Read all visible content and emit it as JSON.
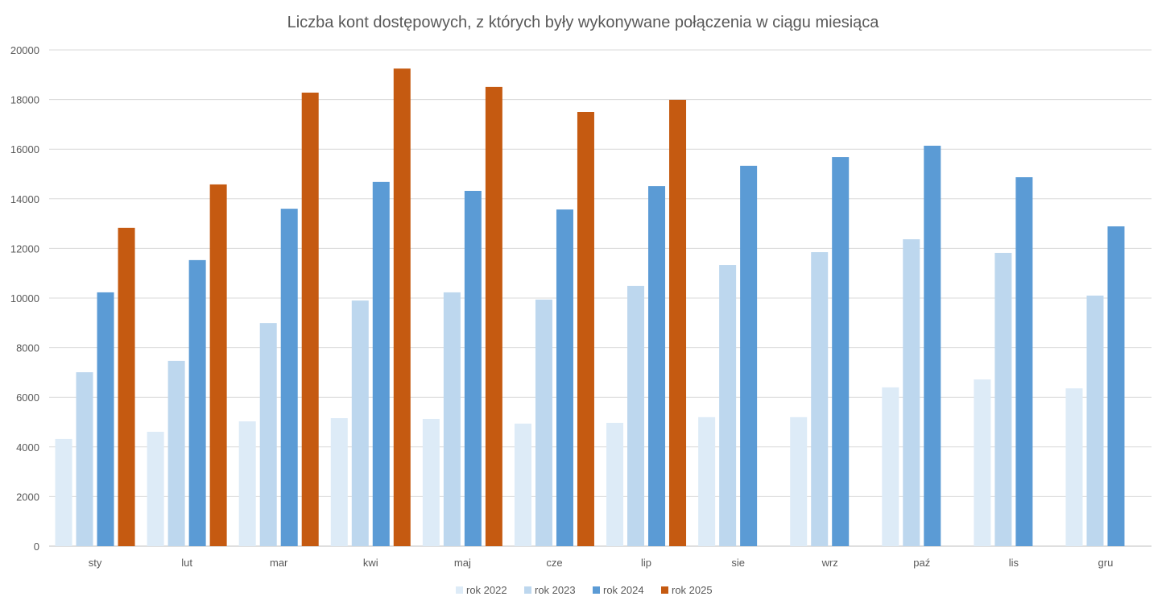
{
  "chart_data": {
    "type": "bar",
    "title": "Liczba kont dostępowych, z których były wykonywane połączenia w ciągu miesiąca",
    "xlabel": "",
    "ylabel": "",
    "ylim": [
      0,
      20000
    ],
    "yticks": [
      0,
      2000,
      4000,
      6000,
      8000,
      10000,
      12000,
      14000,
      16000,
      18000,
      20000
    ],
    "grid": true,
    "legend_position": "bottom",
    "categories": [
      "sty",
      "lut",
      "mar",
      "kwi",
      "maj",
      "cze",
      "lip",
      "sie",
      "wrz",
      "paź",
      "lis",
      "gru"
    ],
    "series": [
      {
        "name": "rok 2022",
        "color": "#DDEBF7",
        "values": [
          4320,
          4610,
          5030,
          5160,
          5130,
          4940,
          4970,
          5200,
          5200,
          6400,
          6720,
          6360
        ]
      },
      {
        "name": "rok 2023",
        "color": "#BDD7EE",
        "values": [
          7010,
          7470,
          8990,
          9900,
          10230,
          9940,
          10490,
          11330,
          11850,
          12370,
          11820,
          10100
        ]
      },
      {
        "name": "rok 2024",
        "color": "#5B9BD5",
        "values": [
          10230,
          11530,
          13600,
          14680,
          14320,
          13570,
          14510,
          15330,
          15680,
          16140,
          14870,
          12890
        ]
      },
      {
        "name": "rok 2025",
        "color": "#C55A11",
        "values": [
          12830,
          14580,
          18280,
          19250,
          18510,
          17500,
          17990,
          null,
          null,
          null,
          null,
          null
        ]
      }
    ]
  }
}
